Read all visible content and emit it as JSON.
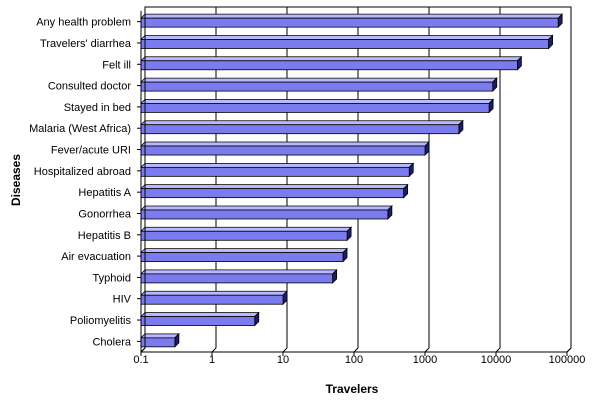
{
  "chart_data": {
    "type": "bar",
    "orientation": "horizontal",
    "x_scale": "log",
    "xlabel": "Travelers",
    "ylabel": "Diseases",
    "xlim": [
      0.1,
      100000
    ],
    "x_ticks": [
      "0.1",
      "1",
      "10",
      "100",
      "1000",
      "10000",
      "100000"
    ],
    "grid": "vertical",
    "colors": {
      "bar_face": "#7b7bf0",
      "bar_top": "#b8b8ff",
      "bar_side": "#1c1c6e",
      "grid": "#000000"
    },
    "categories": [
      "Any health problem",
      "Travelers' diarrhea",
      "Felt ill",
      "Consulted doctor",
      "Stayed in bed",
      "Malaria (West Africa)",
      "Fever/acute URI",
      "Hospitalized abroad",
      "Hepatitis A",
      "Gonorrhea",
      "Hepatitis B",
      "Air evacuation",
      "Typhoid",
      "HIV",
      "Poliomyelitis",
      "Cholera"
    ],
    "values": [
      75000,
      55000,
      20000,
      9000,
      8000,
      3000,
      1000,
      600,
      500,
      300,
      80,
      70,
      50,
      10,
      4,
      0.3
    ]
  }
}
